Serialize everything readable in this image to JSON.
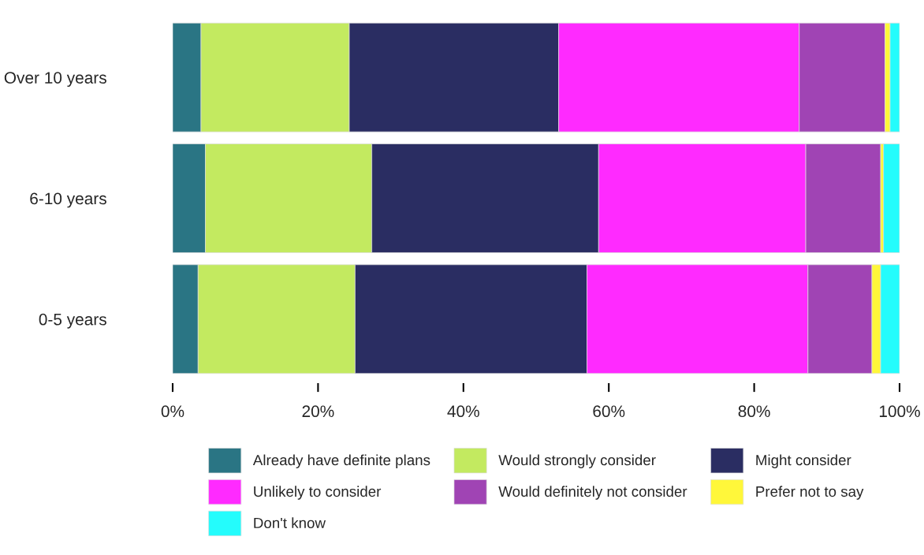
{
  "chart_data": {
    "type": "bar",
    "orientation": "horizontal",
    "stacked": true,
    "categories": [
      "Over 10 years",
      "6-10 years",
      "0-5 years"
    ],
    "series": [
      {
        "name": "Already have definite plans",
        "color": "#2a7584",
        "values": [
          3.9,
          4.5,
          3.5
        ]
      },
      {
        "name": "Would strongly consider",
        "color": "#c3ea60",
        "values": [
          20.4,
          22.9,
          21.6
        ]
      },
      {
        "name": "Might consider",
        "color": "#2a2d62",
        "values": [
          28.8,
          31.2,
          31.9
        ]
      },
      {
        "name": "Unlikely to consider",
        "color": "#ff2aff",
        "values": [
          33.1,
          28.5,
          30.4
        ]
      },
      {
        "name": "Would definitely not consider",
        "color": "#a044b4",
        "values": [
          11.8,
          10.3,
          8.8
        ]
      },
      {
        "name": "Prefer not to say",
        "color": "#fff73a",
        "values": [
          0.7,
          0.4,
          1.2
        ]
      },
      {
        "name": "Don't know",
        "color": "#24fcfc",
        "values": [
          1.3,
          2.2,
          2.6
        ]
      }
    ],
    "xlim": [
      0,
      100
    ],
    "xticks": [
      {
        "value": 0,
        "label": "0%"
      },
      {
        "value": 20,
        "label": "20%"
      },
      {
        "value": 40,
        "label": "40%"
      },
      {
        "value": 60,
        "label": "60%"
      },
      {
        "value": 80,
        "label": "80%"
      },
      {
        "value": 100,
        "label": "100%"
      }
    ],
    "legend": "bottom",
    "grid": false
  }
}
